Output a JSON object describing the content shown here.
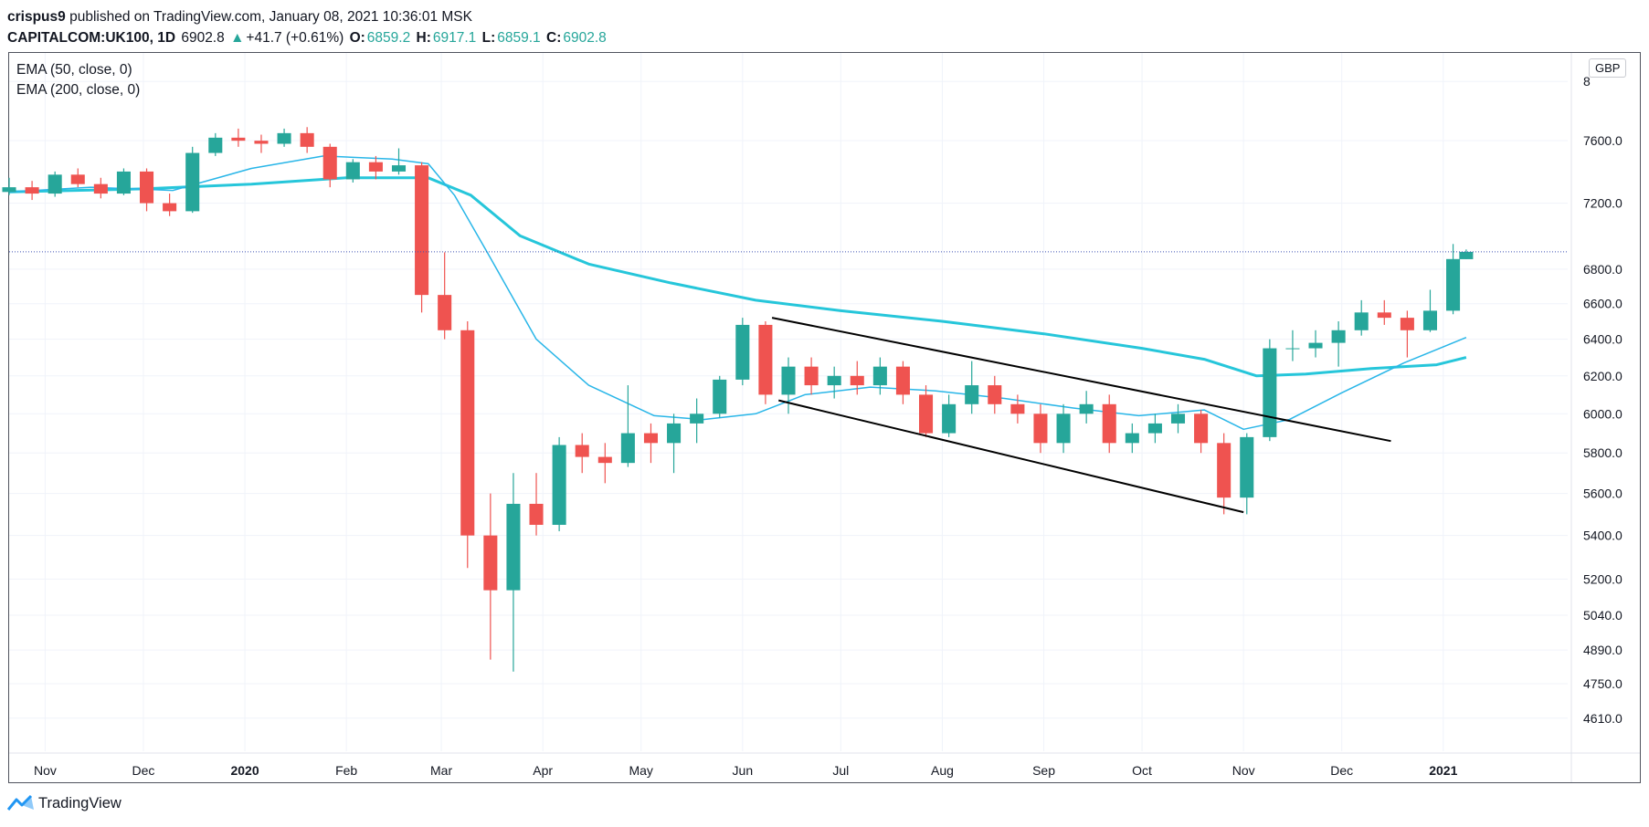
{
  "header": {
    "author": "crispus9",
    "published_text": "published on TradingView.com, January 08, 2021 10:36:01 MSK",
    "symbol": "CAPITALCOM:UK100, 1D",
    "last": "6902.8",
    "change_arrow": "▲",
    "change": "+41.7 (+0.61%)",
    "open_label": "O:",
    "open": "6859.2",
    "high_label": "H:",
    "high": "6917.1",
    "low_label": "L:",
    "low": "6859.1",
    "close_label": "C:",
    "close": "6902.8"
  },
  "legend": {
    "ema50": "EMA (50, close, 0)",
    "ema200": "EMA (200, close, 0)"
  },
  "currency": "GBP",
  "footer": {
    "brand": "TradingView",
    "logo_icon": "tradingview-logo-icon"
  },
  "colors": {
    "up": "#26a69a",
    "down": "#ef5350",
    "ema50": "#29b6e8",
    "ema200": "#26c6da",
    "trendline": "#000000",
    "last_price_line": "#3f51b5"
  },
  "chart_data": {
    "type": "candlestick",
    "title": "",
    "y_scale": "log",
    "ylim": [
      4480,
      8200
    ],
    "y_ticks": [
      "8",
      "7600.0",
      "7200.0",
      "6800.0",
      "6600.0",
      "6400.0",
      "6200.0",
      "6000.0",
      "5800.0",
      "5600.0",
      "5400.0",
      "5200.0",
      "5040.0",
      "4890.0",
      "4750.0",
      "4610.0"
    ],
    "x_ticks": [
      "Nov",
      "Dec",
      "2020",
      "Feb",
      "Mar",
      "Apr",
      "May",
      "Jun",
      "Jul",
      "Aug",
      "Sep",
      "Oct",
      "Nov",
      "Dec",
      "2021"
    ],
    "x_range": [
      "2019-10-21",
      "2021-02-08"
    ],
    "grid": true,
    "legend_position": "top-left",
    "last_price": 6902.8,
    "series": [
      {
        "name": "EMA (50, close, 0)",
        "type": "line",
        "points": [
          [
            "2019-10-21",
            7270
          ],
          [
            "2019-11-15",
            7300
          ],
          [
            "2019-12-10",
            7280
          ],
          [
            "2020-01-03",
            7420
          ],
          [
            "2020-01-25",
            7500
          ],
          [
            "2020-02-15",
            7480
          ],
          [
            "2020-02-26",
            7450
          ],
          [
            "2020-03-05",
            7250
          ],
          [
            "2020-03-15",
            6900
          ],
          [
            "2020-03-30",
            6400
          ],
          [
            "2020-04-15",
            6150
          ],
          [
            "2020-05-05",
            5990
          ],
          [
            "2020-05-20",
            5970
          ],
          [
            "2020-06-05",
            6000
          ],
          [
            "2020-06-20",
            6100
          ],
          [
            "2020-07-10",
            6140
          ],
          [
            "2020-07-30",
            6120
          ],
          [
            "2020-08-20",
            6080
          ],
          [
            "2020-09-10",
            6030
          ],
          [
            "2020-09-30",
            5990
          ],
          [
            "2020-10-20",
            6020
          ],
          [
            "2020-11-01",
            5920
          ],
          [
            "2020-11-15",
            5970
          ],
          [
            "2020-12-01",
            6110
          ],
          [
            "2020-12-20",
            6270
          ],
          [
            "2021-01-08",
            6410
          ]
        ]
      },
      {
        "name": "EMA (200, close, 0)",
        "type": "line",
        "points": [
          [
            "2019-10-21",
            7270
          ],
          [
            "2019-12-01",
            7290
          ],
          [
            "2020-01-03",
            7320
          ],
          [
            "2020-02-01",
            7360
          ],
          [
            "2020-02-26",
            7360
          ],
          [
            "2020-03-10",
            7250
          ],
          [
            "2020-03-25",
            7000
          ],
          [
            "2020-04-15",
            6830
          ],
          [
            "2020-05-10",
            6720
          ],
          [
            "2020-06-05",
            6620
          ],
          [
            "2020-07-01",
            6560
          ],
          [
            "2020-08-01",
            6500
          ],
          [
            "2020-09-01",
            6430
          ],
          [
            "2020-10-01",
            6350
          ],
          [
            "2020-10-20",
            6290
          ],
          [
            "2020-11-05",
            6200
          ],
          [
            "2020-11-20",
            6210
          ],
          [
            "2020-12-10",
            6240
          ],
          [
            "2020-12-30",
            6260
          ],
          [
            "2021-01-08",
            6300
          ]
        ]
      }
    ],
    "ohlc": [
      {
        "date": "2019-10-21",
        "open": 7270,
        "high": 7360,
        "low": 7250,
        "close": 7300
      },
      {
        "date": "2019-10-28",
        "open": 7300,
        "high": 7340,
        "low": 7220,
        "close": 7260
      },
      {
        "date": "2019-11-04",
        "open": 7260,
        "high": 7400,
        "low": 7240,
        "close": 7380
      },
      {
        "date": "2019-11-11",
        "open": 7380,
        "high": 7420,
        "low": 7300,
        "close": 7320
      },
      {
        "date": "2019-11-18",
        "open": 7320,
        "high": 7360,
        "low": 7230,
        "close": 7260
      },
      {
        "date": "2019-11-25",
        "open": 7260,
        "high": 7420,
        "low": 7250,
        "close": 7400
      },
      {
        "date": "2019-12-02",
        "open": 7400,
        "high": 7420,
        "low": 7150,
        "close": 7200
      },
      {
        "date": "2019-12-09",
        "open": 7200,
        "high": 7260,
        "low": 7120,
        "close": 7150
      },
      {
        "date": "2019-12-16",
        "open": 7150,
        "high": 7560,
        "low": 7140,
        "close": 7520
      },
      {
        "date": "2019-12-23",
        "open": 7520,
        "high": 7650,
        "low": 7500,
        "close": 7620
      },
      {
        "date": "2019-12-30",
        "open": 7620,
        "high": 7680,
        "low": 7560,
        "close": 7600
      },
      {
        "date": "2020-01-06",
        "open": 7600,
        "high": 7640,
        "low": 7520,
        "close": 7580
      },
      {
        "date": "2020-01-13",
        "open": 7580,
        "high": 7680,
        "low": 7560,
        "close": 7650
      },
      {
        "date": "2020-01-20",
        "open": 7650,
        "high": 7690,
        "low": 7520,
        "close": 7560
      },
      {
        "date": "2020-01-27",
        "open": 7560,
        "high": 7580,
        "low": 7300,
        "close": 7350
      },
      {
        "date": "2020-02-03",
        "open": 7350,
        "high": 7480,
        "low": 7330,
        "close": 7460
      },
      {
        "date": "2020-02-10",
        "open": 7460,
        "high": 7500,
        "low": 7350,
        "close": 7400
      },
      {
        "date": "2020-02-17",
        "open": 7400,
        "high": 7550,
        "low": 7380,
        "close": 7440
      },
      {
        "date": "2020-02-24",
        "open": 7440,
        "high": 7460,
        "low": 6550,
        "close": 6650
      },
      {
        "date": "2020-03-02",
        "open": 6650,
        "high": 6900,
        "low": 6400,
        "close": 6450
      },
      {
        "date": "2020-03-09",
        "open": 6450,
        "high": 6500,
        "low": 5250,
        "close": 5400
      },
      {
        "date": "2020-03-16",
        "open": 5400,
        "high": 5600,
        "low": 4850,
        "close": 5150
      },
      {
        "date": "2020-03-23",
        "open": 5150,
        "high": 5700,
        "low": 4800,
        "close": 5550
      },
      {
        "date": "2020-03-30",
        "open": 5550,
        "high": 5700,
        "low": 5400,
        "close": 5450
      },
      {
        "date": "2020-04-06",
        "open": 5450,
        "high": 5880,
        "low": 5420,
        "close": 5840
      },
      {
        "date": "2020-04-13",
        "open": 5840,
        "high": 5900,
        "low": 5700,
        "close": 5780
      },
      {
        "date": "2020-04-20",
        "open": 5780,
        "high": 5850,
        "low": 5650,
        "close": 5750
      },
      {
        "date": "2020-04-27",
        "open": 5750,
        "high": 6150,
        "low": 5730,
        "close": 5900
      },
      {
        "date": "2020-05-04",
        "open": 5900,
        "high": 5950,
        "low": 5750,
        "close": 5850
      },
      {
        "date": "2020-05-11",
        "open": 5850,
        "high": 6000,
        "low": 5700,
        "close": 5950
      },
      {
        "date": "2020-05-18",
        "open": 5950,
        "high": 6080,
        "low": 5850,
        "close": 6000
      },
      {
        "date": "2020-05-25",
        "open": 6000,
        "high": 6200,
        "low": 5980,
        "close": 6180
      },
      {
        "date": "2020-06-01",
        "open": 6180,
        "high": 6520,
        "low": 6150,
        "close": 6480
      },
      {
        "date": "2020-06-08",
        "open": 6480,
        "high": 6500,
        "low": 6050,
        "close": 6100
      },
      {
        "date": "2020-06-15",
        "open": 6100,
        "high": 6300,
        "low": 6000,
        "close": 6250
      },
      {
        "date": "2020-06-22",
        "open": 6250,
        "high": 6300,
        "low": 6100,
        "close": 6150
      },
      {
        "date": "2020-06-29",
        "open": 6150,
        "high": 6250,
        "low": 6080,
        "close": 6200
      },
      {
        "date": "2020-07-06",
        "open": 6200,
        "high": 6280,
        "low": 6100,
        "close": 6150
      },
      {
        "date": "2020-07-13",
        "open": 6150,
        "high": 6300,
        "low": 6100,
        "close": 6250
      },
      {
        "date": "2020-07-20",
        "open": 6250,
        "high": 6280,
        "low": 6050,
        "close": 6100
      },
      {
        "date": "2020-07-27",
        "open": 6100,
        "high": 6150,
        "low": 5880,
        "close": 5900
      },
      {
        "date": "2020-08-03",
        "open": 5900,
        "high": 6100,
        "low": 5880,
        "close": 6050
      },
      {
        "date": "2020-08-10",
        "open": 6050,
        "high": 6280,
        "low": 6000,
        "close": 6150
      },
      {
        "date": "2020-08-17",
        "open": 6150,
        "high": 6200,
        "low": 6000,
        "close": 6050
      },
      {
        "date": "2020-08-24",
        "open": 6050,
        "high": 6100,
        "low": 5950,
        "close": 6000
      },
      {
        "date": "2020-08-31",
        "open": 6000,
        "high": 6050,
        "low": 5800,
        "close": 5850
      },
      {
        "date": "2020-09-07",
        "open": 5850,
        "high": 6050,
        "low": 5800,
        "close": 6000
      },
      {
        "date": "2020-09-14",
        "open": 6000,
        "high": 6120,
        "low": 5950,
        "close": 6050
      },
      {
        "date": "2020-09-21",
        "open": 6050,
        "high": 6100,
        "low": 5800,
        "close": 5850
      },
      {
        "date": "2020-09-28",
        "open": 5850,
        "high": 5950,
        "low": 5800,
        "close": 5900
      },
      {
        "date": "2020-10-05",
        "open": 5900,
        "high": 6000,
        "low": 5850,
        "close": 5950
      },
      {
        "date": "2020-10-12",
        "open": 5950,
        "high": 6050,
        "low": 5900,
        "close": 6000
      },
      {
        "date": "2020-10-19",
        "open": 6000,
        "high": 6020,
        "low": 5800,
        "close": 5850
      },
      {
        "date": "2020-10-26",
        "open": 5850,
        "high": 5900,
        "low": 5500,
        "close": 5580
      },
      {
        "date": "2020-11-02",
        "open": 5580,
        "high": 5900,
        "low": 5500,
        "close": 5880
      },
      {
        "date": "2020-11-09",
        "open": 5880,
        "high": 6400,
        "low": 5860,
        "close": 6350
      },
      {
        "date": "2020-11-16",
        "open": 6350,
        "high": 6450,
        "low": 6280,
        "close": 6350
      },
      {
        "date": "2020-11-23",
        "open": 6350,
        "high": 6450,
        "low": 6300,
        "close": 6380
      },
      {
        "date": "2020-11-30",
        "open": 6380,
        "high": 6500,
        "low": 6250,
        "close": 6450
      },
      {
        "date": "2020-12-07",
        "open": 6450,
        "high": 6620,
        "low": 6420,
        "close": 6550
      },
      {
        "date": "2020-12-14",
        "open": 6550,
        "high": 6620,
        "low": 6480,
        "close": 6520
      },
      {
        "date": "2020-12-21",
        "open": 6520,
        "high": 6560,
        "low": 6300,
        "close": 6450
      },
      {
        "date": "2020-12-28",
        "open": 6450,
        "high": 6680,
        "low": 6440,
        "close": 6560
      },
      {
        "date": "2021-01-04",
        "open": 6560,
        "high": 6950,
        "low": 6540,
        "close": 6860
      },
      {
        "date": "2021-01-08",
        "open": 6859.2,
        "high": 6917.1,
        "low": 6859.1,
        "close": 6902.8
      }
    ],
    "trendlines": [
      {
        "from": [
          "2020-06-10",
          6520
        ],
        "to": [
          "2020-12-16",
          5860
        ]
      },
      {
        "from": [
          "2020-06-12",
          6070
        ],
        "to": [
          "2020-11-01",
          5510
        ]
      }
    ]
  }
}
